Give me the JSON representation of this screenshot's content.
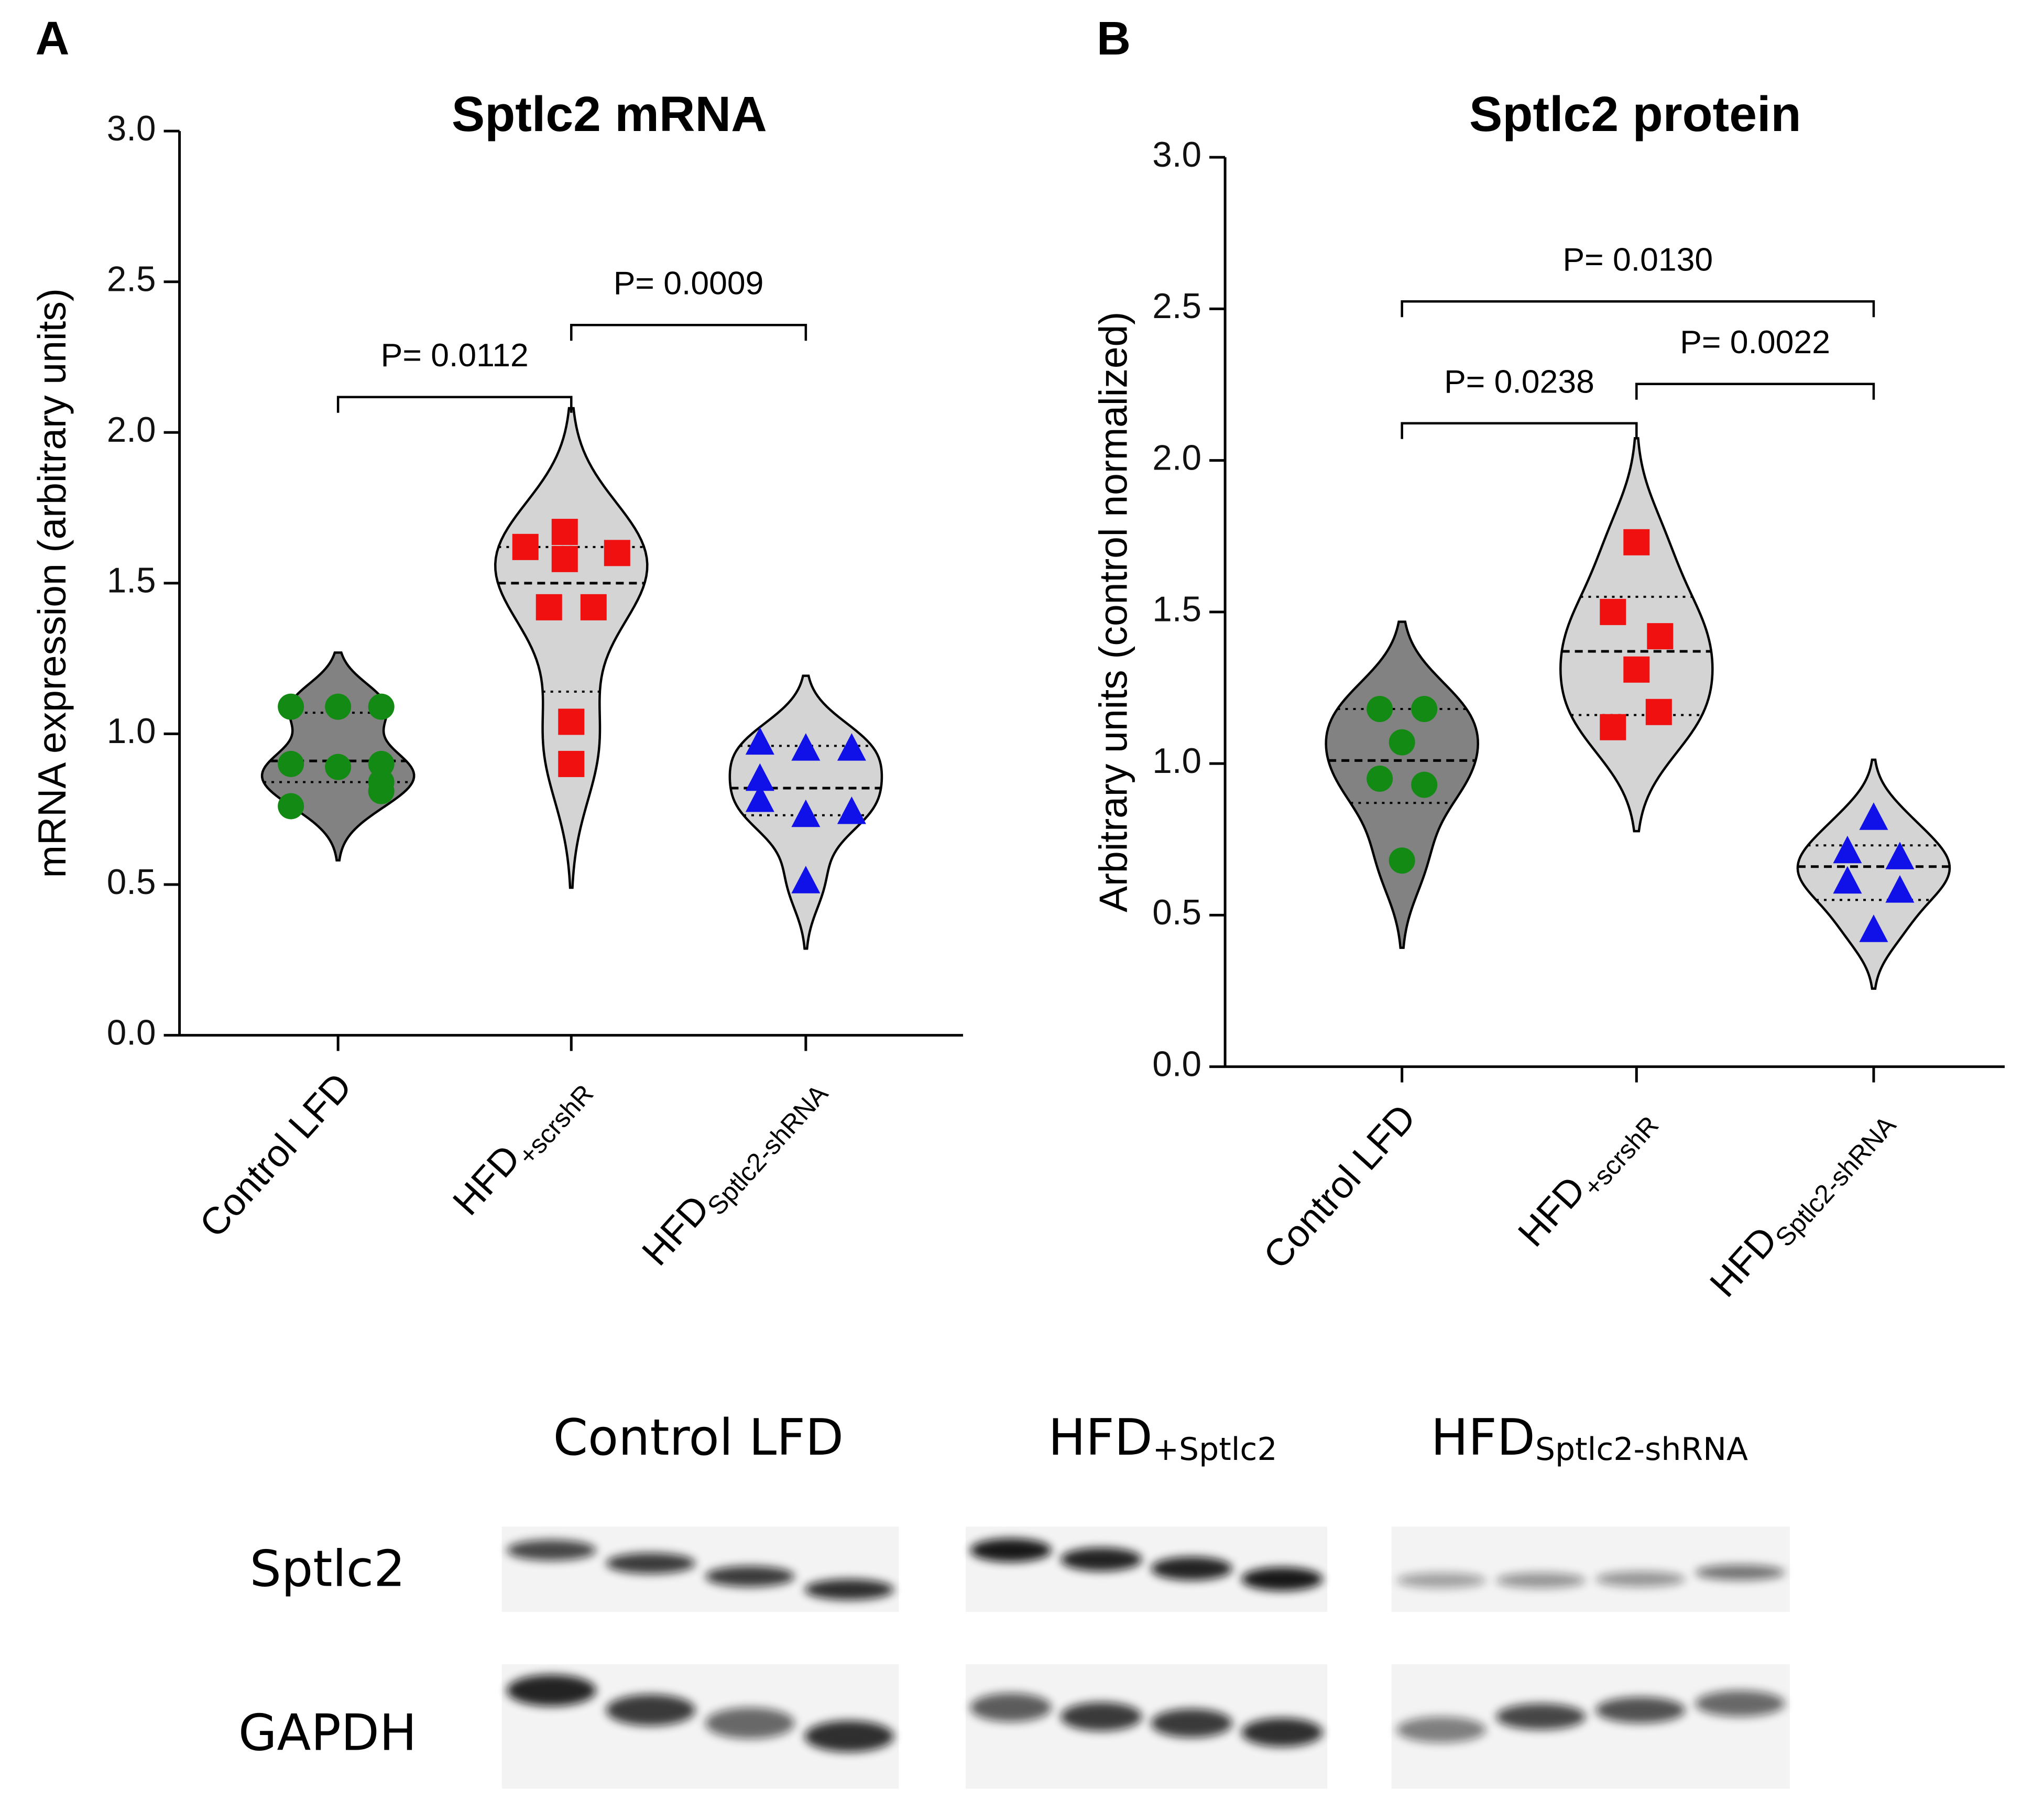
{
  "chart_data": [
    {
      "type": "violin",
      "label": "A",
      "title": "Sptlc2 mRNA",
      "ylabel": "mRNA expression (arbitrary units)",
      "categories": [
        "Control LFD",
        "HFD",
        "HFD"
      ],
      "category_subscripts": [
        null,
        "+scrshR",
        "Sptlc2-shRNA"
      ],
      "ylim": [
        0,
        3
      ],
      "yticks": [
        {
          "value": 0,
          "label": "0.0"
        },
        {
          "value": 0.5,
          "label": "0.5"
        },
        {
          "value": 1,
          "label": "1.0"
        },
        {
          "value": 1.5,
          "label": "1.5"
        },
        {
          "value": 2,
          "label": "2.0"
        },
        {
          "value": 2.5,
          "label": "2.5"
        },
        {
          "value": 3,
          "label": "3.0"
        }
      ],
      "groups": [
        {
          "marker": "circle",
          "color": "#138a13",
          "violin_color": "#828282",
          "values": [
            1.09,
            1.09,
            1.09,
            0.9,
            0.89,
            0.9,
            0.84,
            0.81,
            0.76
          ],
          "median": 0.91,
          "quartiles": [
            0.84,
            1.07
          ]
        },
        {
          "marker": "square",
          "color": "#f01010",
          "violin_color": "#d4d4d4",
          "values": [
            1.62,
            1.67,
            1.6,
            1.58,
            1.42,
            1.42,
            1.04,
            0.9
          ],
          "median": 1.5,
          "quartiles": [
            1.14,
            1.62
          ]
        },
        {
          "marker": "triangle",
          "color": "#1010e8",
          "violin_color": "#d4d4d4",
          "values": [
            0.97,
            0.95,
            0.95,
            0.85,
            0.78,
            0.73,
            0.74,
            0.51
          ],
          "median": 0.82,
          "quartiles": [
            0.73,
            0.96
          ]
        }
      ],
      "annotations": [
        "P= 0.0112",
        "P= 0.0009"
      ]
    },
    {
      "type": "violin",
      "label": "B",
      "title": "Sptlc2 protein",
      "ylabel": "Arbitrary units (control normalized)",
      "categories": [
        "Control LFD",
        "HFD",
        "HFD"
      ],
      "category_subscripts": [
        null,
        "+scrshR",
        "Sptlc2-shRNA"
      ],
      "ylim": [
        0,
        3
      ],
      "yticks": [
        {
          "value": 0,
          "label": "0.0"
        },
        {
          "value": 0.5,
          "label": "0.5"
        },
        {
          "value": 1,
          "label": "1.0"
        },
        {
          "value": 1.5,
          "label": "1.5"
        },
        {
          "value": 2,
          "label": "2.0"
        },
        {
          "value": 2.5,
          "label": "2.5"
        },
        {
          "value": 3,
          "label": "3.0"
        }
      ],
      "groups": [
        {
          "marker": "circle",
          "color": "#138a13",
          "violin_color": "#828282",
          "values": [
            1.18,
            1.18,
            1.07,
            0.95,
            0.93,
            0.68
          ],
          "median": 1.01,
          "quartiles": [
            0.87,
            1.18
          ]
        },
        {
          "marker": "square",
          "color": "#f01010",
          "violin_color": "#d4d4d4",
          "values": [
            1.73,
            1.5,
            1.42,
            1.31,
            1.17,
            1.12
          ],
          "median": 1.37,
          "quartiles": [
            1.16,
            1.55
          ]
        },
        {
          "marker": "triangle",
          "color": "#1010e8",
          "violin_color": "#d4d4d4",
          "values": [
            0.82,
            0.71,
            0.69,
            0.61,
            0.58,
            0.45
          ],
          "median": 0.66,
          "quartiles": [
            0.55,
            0.73
          ]
        }
      ],
      "annotations": [
        "P= 0.0130",
        "P= 0.0238",
        "P= 0.0022"
      ]
    }
  ],
  "blot": {
    "lanes": [
      "Control LFD",
      "HFD",
      "HFD"
    ],
    "lane_subscripts": [
      null,
      "+Sptlc2",
      "Sptlc2-shRNA"
    ],
    "rows": [
      "Sptlc2",
      "GAPDH"
    ]
  }
}
